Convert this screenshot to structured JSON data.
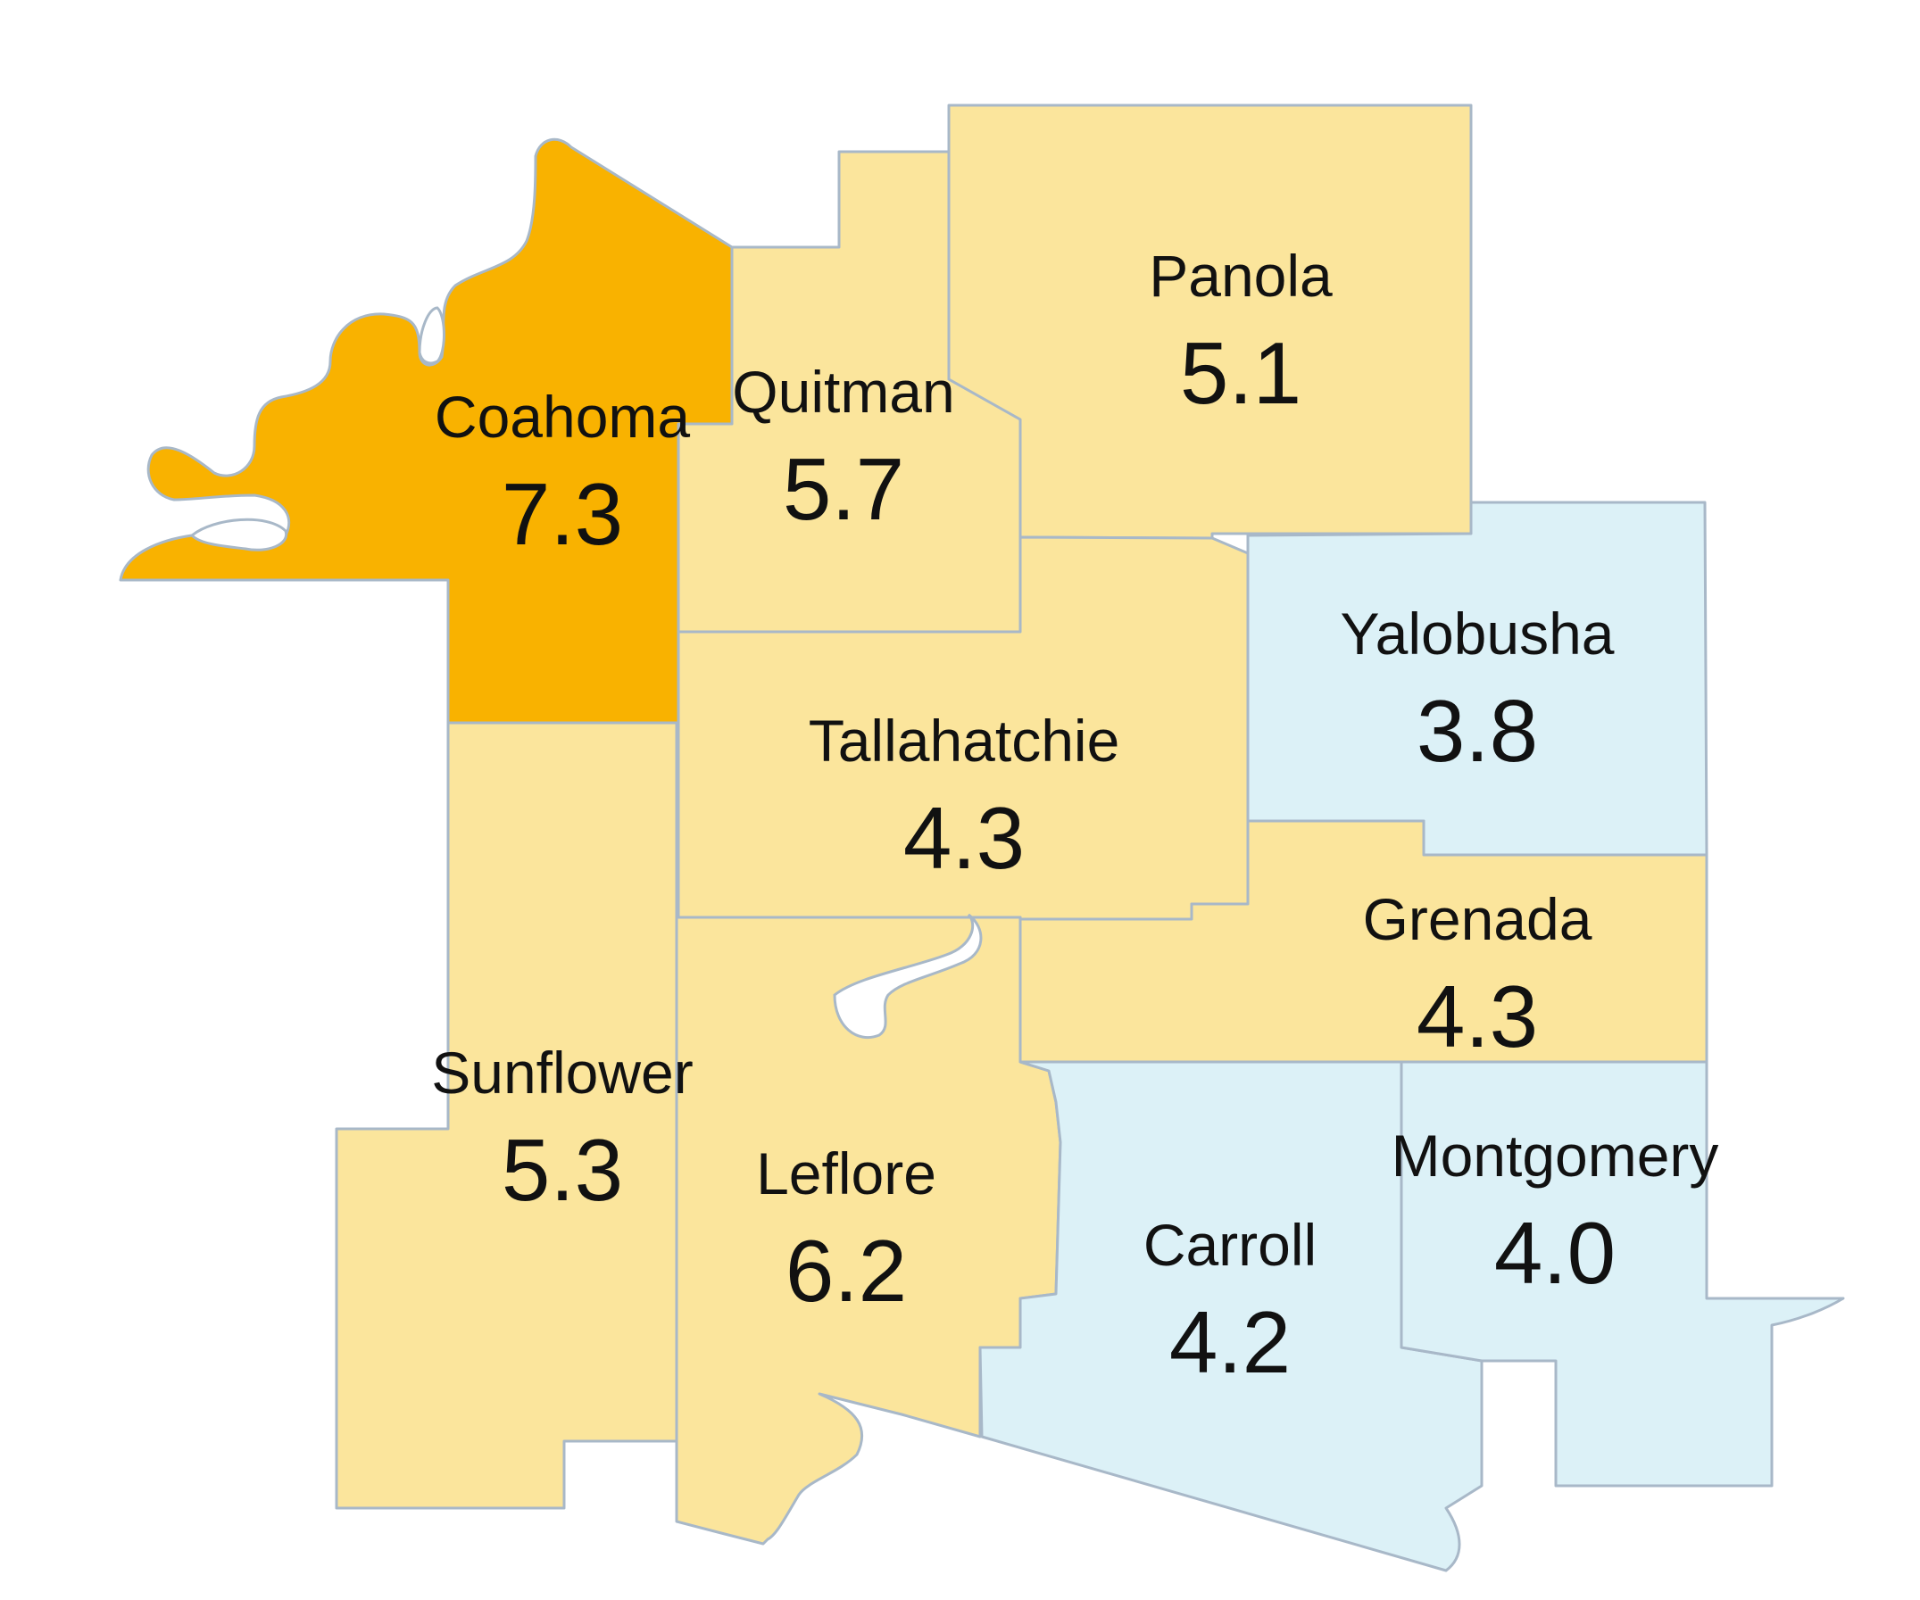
{
  "map": {
    "colors": {
      "highest": "#f9b200",
      "middle": "#fbe59c",
      "lowest": "#dcf1f7",
      "border": "#a8b8c8",
      "text": "#111111"
    },
    "counties": [
      {
        "id": "coahoma",
        "name": "Coahoma",
        "value": "7.3",
        "tier": "highest"
      },
      {
        "id": "quitman",
        "name": "Quitman",
        "value": "5.7",
        "tier": "middle"
      },
      {
        "id": "panola",
        "name": "Panola",
        "value": "5.1",
        "tier": "middle"
      },
      {
        "id": "tallahatchie",
        "name": "Tallahatchie",
        "value": "4.3",
        "tier": "middle"
      },
      {
        "id": "yalobusha",
        "name": "Yalobusha",
        "value": "3.8",
        "tier": "lowest"
      },
      {
        "id": "grenada",
        "name": "Grenada",
        "value": "4.3",
        "tier": "middle"
      },
      {
        "id": "sunflower",
        "name": "Sunflower",
        "value": "5.3",
        "tier": "middle"
      },
      {
        "id": "leflore",
        "name": "Leflore",
        "value": "6.2",
        "tier": "middle"
      },
      {
        "id": "carroll",
        "name": "Carroll",
        "value": "4.2",
        "tier": "lowest"
      },
      {
        "id": "montgomery",
        "name": "Montgomery",
        "value": "4.0",
        "tier": "lowest"
      }
    ]
  }
}
